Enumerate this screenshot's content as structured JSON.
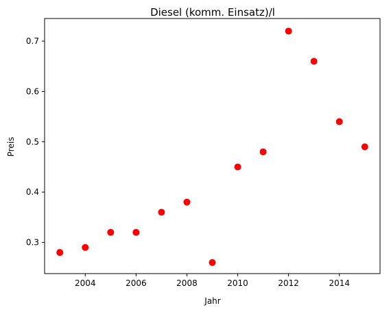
{
  "chart_data": {
    "type": "scatter",
    "title": "Diesel (komm. Einsatz)/l",
    "xlabel": "Jahr",
    "ylabel": "Preis",
    "x": [
      2003,
      2004,
      2005,
      2006,
      2007,
      2008,
      2009,
      2010,
      2011,
      2012,
      2013,
      2014,
      2015
    ],
    "y": [
      0.28,
      0.29,
      0.32,
      0.32,
      0.36,
      0.38,
      0.26,
      0.45,
      0.48,
      0.72,
      0.66,
      0.54,
      0.49
    ],
    "xlim": [
      2002.4,
      2015.6
    ],
    "ylim": [
      0.238,
      0.745
    ],
    "xticks": [
      "2004",
      "2006",
      "2008",
      "2010",
      "2012",
      "2014"
    ],
    "yticks": [
      "0.3",
      "0.4",
      "0.5",
      "0.6",
      "0.7"
    ],
    "marker_color": "#ff0000",
    "grid": false
  }
}
